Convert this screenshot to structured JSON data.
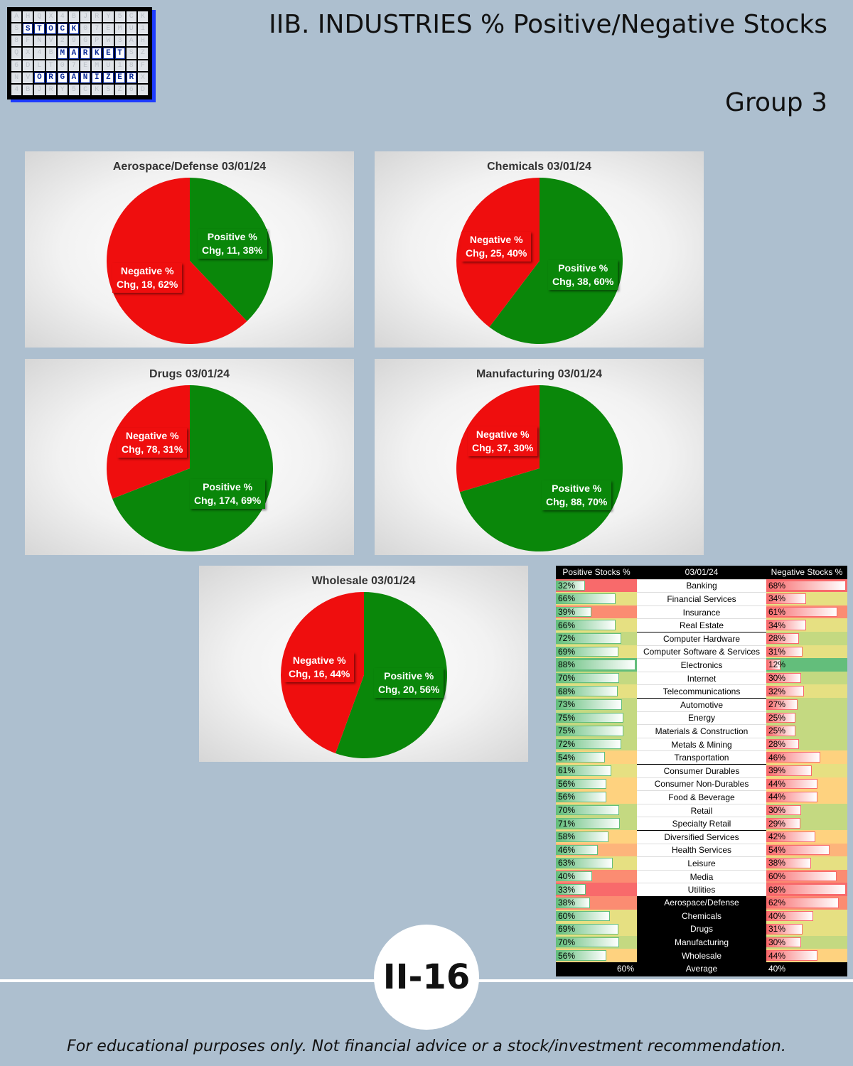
{
  "header": {
    "title": "IIB. INDUSTRIES % Positive/Negative Stocks",
    "group": "Group 3"
  },
  "logo": {
    "words": [
      "STOCK",
      "MARKET",
      "ORGANIZER"
    ]
  },
  "colors": {
    "positive": "#0a870a",
    "negative": "#ef0e0e"
  },
  "chart_data": [
    {
      "type": "pie",
      "title": "Aerospace/Defense 03/01/24",
      "slices": [
        {
          "name": "Positive % Chg",
          "value": 11,
          "percent": 38,
          "label": "Positive % Chg, 11, 38%"
        },
        {
          "name": "Negative % Chg",
          "value": 18,
          "percent": 62,
          "label": "Negative % Chg, 18, 62%"
        }
      ]
    },
    {
      "type": "pie",
      "title": "Chemicals 03/01/24",
      "slices": [
        {
          "name": "Positive % Chg",
          "value": 38,
          "percent": 60,
          "label": "Positive % Chg, 38, 60%"
        },
        {
          "name": "Negative % Chg",
          "value": 25,
          "percent": 40,
          "label": "Negative % Chg, 25, 40%"
        }
      ]
    },
    {
      "type": "pie",
      "title": "Drugs 03/01/24",
      "slices": [
        {
          "name": "Positive % Chg",
          "value": 174,
          "percent": 69,
          "label": "Positive % Chg, 174, 69%"
        },
        {
          "name": "Negative % Chg",
          "value": 78,
          "percent": 31,
          "label": "Negative % Chg, 78, 31%"
        }
      ]
    },
    {
      "type": "pie",
      "title": "Manufacturing 03/01/24",
      "slices": [
        {
          "name": "Positive % Chg",
          "value": 88,
          "percent": 70,
          "label": "Positive % Chg, 88, 70%"
        },
        {
          "name": "Negative % Chg",
          "value": 37,
          "percent": 30,
          "label": "Negative % Chg, 37, 30%"
        }
      ]
    },
    {
      "type": "pie",
      "title": "Wholesale 03/01/24",
      "slices": [
        {
          "name": "Positive % Chg",
          "value": 20,
          "percent": 56,
          "label": "Positive % Chg, 20, 56%"
        },
        {
          "name": "Negative % Chg",
          "value": 16,
          "percent": 44,
          "label": "Negative % Chg, 16, 44%"
        }
      ]
    },
    {
      "type": "table",
      "headers": [
        "Positive Stocks %",
        "03/01/24",
        "Negative Stocks %"
      ],
      "rows": [
        {
          "industry": "Banking",
          "pos": 32,
          "neg": 68
        },
        {
          "industry": "Financial Services",
          "pos": 66,
          "neg": 34
        },
        {
          "industry": "Insurance",
          "pos": 39,
          "neg": 61
        },
        {
          "industry": "Real Estate",
          "pos": 66,
          "neg": 34
        },
        {
          "industry": "Computer Hardware",
          "pos": 72,
          "neg": 28
        },
        {
          "industry": "Computer Software & Services",
          "pos": 69,
          "neg": 31
        },
        {
          "industry": "Electronics",
          "pos": 88,
          "neg": 12
        },
        {
          "industry": "Internet",
          "pos": 70,
          "neg": 30
        },
        {
          "industry": "Telecommunications",
          "pos": 68,
          "neg": 32
        },
        {
          "industry": "Automotive",
          "pos": 73,
          "neg": 27
        },
        {
          "industry": "Energy",
          "pos": 75,
          "neg": 25
        },
        {
          "industry": "Materials & Construction",
          "pos": 75,
          "neg": 25
        },
        {
          "industry": "Metals & Mining",
          "pos": 72,
          "neg": 28
        },
        {
          "industry": "Transportation",
          "pos": 54,
          "neg": 46
        },
        {
          "industry": "Consumer Durables",
          "pos": 61,
          "neg": 39
        },
        {
          "industry": "Consumer Non-Durables",
          "pos": 56,
          "neg": 44
        },
        {
          "industry": "Food & Beverage",
          "pos": 56,
          "neg": 44
        },
        {
          "industry": "Retail",
          "pos": 70,
          "neg": 30
        },
        {
          "industry": "Specialty Retail",
          "pos": 71,
          "neg": 29
        },
        {
          "industry": "Diversified Services",
          "pos": 58,
          "neg": 42
        },
        {
          "industry": "Health Services",
          "pos": 46,
          "neg": 54
        },
        {
          "industry": "Leisure",
          "pos": 63,
          "neg": 38
        },
        {
          "industry": "Media",
          "pos": 40,
          "neg": 60
        },
        {
          "industry": "Utilities",
          "pos": 33,
          "neg": 68
        },
        {
          "industry": "Aerospace/Defense",
          "pos": 38,
          "neg": 62,
          "group": true
        },
        {
          "industry": "Chemicals",
          "pos": 60,
          "neg": 40,
          "group": true
        },
        {
          "industry": "Drugs",
          "pos": 69,
          "neg": 31,
          "group": true
        },
        {
          "industry": "Manufacturing",
          "pos": 70,
          "neg": 30,
          "group": true
        },
        {
          "industry": "Wholesale",
          "pos": 56,
          "neg": 44,
          "group": true
        }
      ],
      "average": {
        "label": "Average",
        "pos": "60%",
        "neg": "40%"
      }
    }
  ],
  "footer": {
    "page_number": "II-16",
    "disclaimer": "For educational purposes only. Not financial advice or a stock/investment recommendation."
  }
}
